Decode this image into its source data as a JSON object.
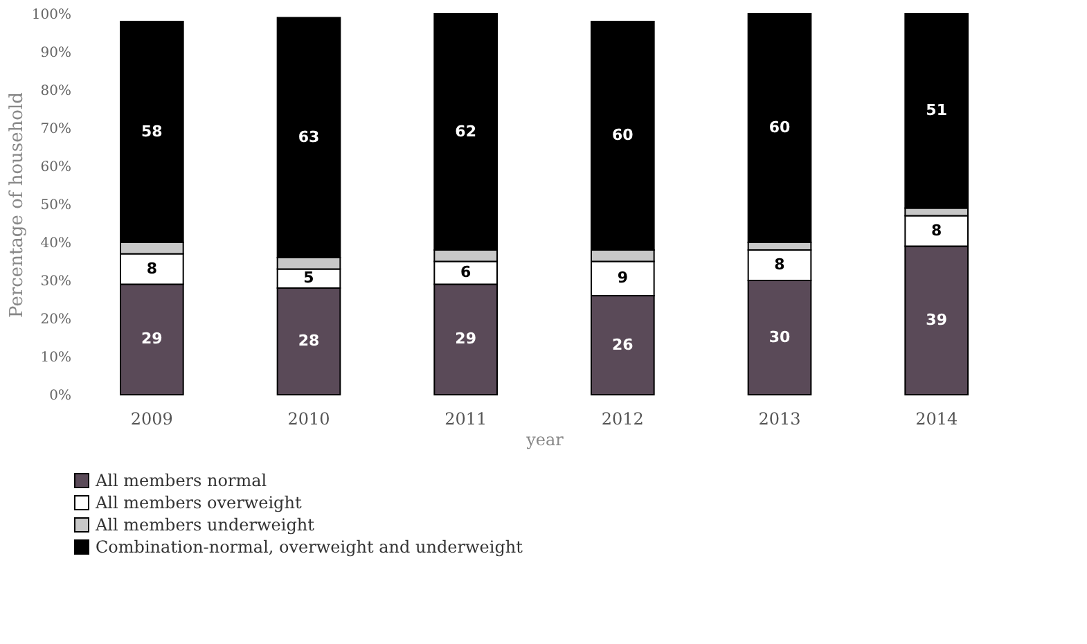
{
  "chart_data": {
    "type": "bar",
    "stacked": true,
    "xlabel": "year",
    "ylabel": "Percentage of household",
    "categories": [
      "2009",
      "2010",
      "2011",
      "2012",
      "2013",
      "2014"
    ],
    "series": [
      {
        "name": "All members normal",
        "color": "#5a4a58",
        "values": [
          29,
          28,
          29,
          26,
          30,
          39
        ],
        "value_labels": [
          "29",
          "28",
          "29",
          "26",
          "30",
          "39"
        ]
      },
      {
        "name": "All members overweight",
        "color": "#ffffff",
        "values": [
          8,
          5,
          6,
          9,
          8,
          8
        ],
        "value_labels": [
          "8",
          "5",
          "6",
          "9",
          "8",
          "8"
        ]
      },
      {
        "name": "All members underweight",
        "color": "#c8c8c8",
        "values": [
          3,
          3,
          3,
          3,
          2,
          2
        ],
        "value_labels": [
          null,
          null,
          null,
          null,
          null,
          null
        ]
      },
      {
        "name": "Combination-normal, overweight and underweight",
        "color": "#000000",
        "values": [
          58,
          63,
          62,
          60,
          60,
          51
        ],
        "value_labels": [
          "58",
          "63",
          "62",
          "60",
          "60",
          "51"
        ]
      }
    ],
    "ylim": [
      0,
      100
    ],
    "yticks": [
      {
        "value": 0,
        "label": "0%"
      },
      {
        "value": 10,
        "label": "10%"
      },
      {
        "value": 20,
        "label": "20%"
      },
      {
        "value": 30,
        "label": "30%"
      },
      {
        "value": 40,
        "label": "40%"
      },
      {
        "value": 50,
        "label": "50%"
      },
      {
        "value": 60,
        "label": "60%"
      },
      {
        "value": 70,
        "label": "70%"
      },
      {
        "value": 80,
        "label": "80%"
      },
      {
        "value": 90,
        "label": "90%"
      },
      {
        "value": 100,
        "label": "100%"
      }
    ],
    "grid": false,
    "legend": "bottom"
  }
}
